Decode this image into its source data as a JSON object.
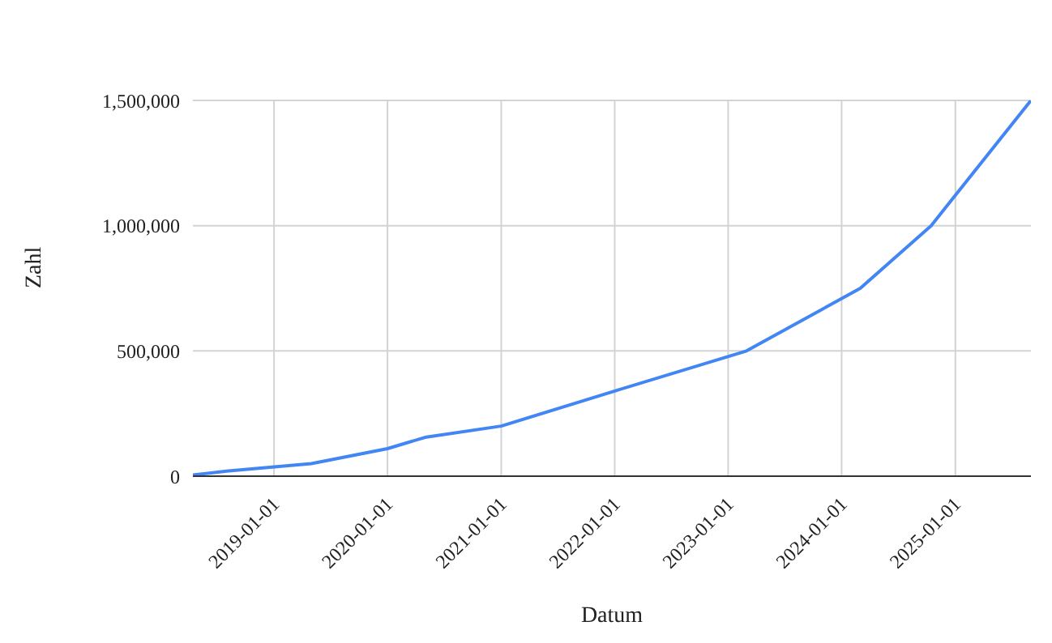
{
  "chart_data": {
    "type": "line",
    "xlabel": "Datum",
    "ylabel": "Zahl",
    "x": [
      "2018-04-15",
      "2018-08-01",
      "2019-05-01",
      "2020-01-01",
      "2020-05-01",
      "2021-01-01",
      "2022-01-01",
      "2023-03-01",
      "2024-03-01",
      "2024-10-15",
      "2025-09-01"
    ],
    "series": [
      {
        "color": "#4285f4",
        "values": [
          5000,
          20000,
          50000,
          110000,
          155000,
          200000,
          340000,
          500000,
          750000,
          1000000,
          1500000
        ]
      }
    ],
    "xlim": [
      "2018-04-15",
      "2025-09-01"
    ],
    "xticks": [
      "2019-01-01",
      "2020-01-01",
      "2021-01-01",
      "2022-01-01",
      "2023-01-01",
      "2024-01-01",
      "2025-01-01"
    ],
    "ylim": [
      0,
      1500000
    ],
    "yticks": [
      {
        "value": 0,
        "label": "0"
      },
      {
        "value": 500000,
        "label": "500,000"
      },
      {
        "value": 1000000,
        "label": "1,000,000"
      },
      {
        "value": 1500000,
        "label": "1,500,000"
      }
    ],
    "grid": true,
    "legend": false,
    "marker": "none",
    "line_style": "solid"
  }
}
